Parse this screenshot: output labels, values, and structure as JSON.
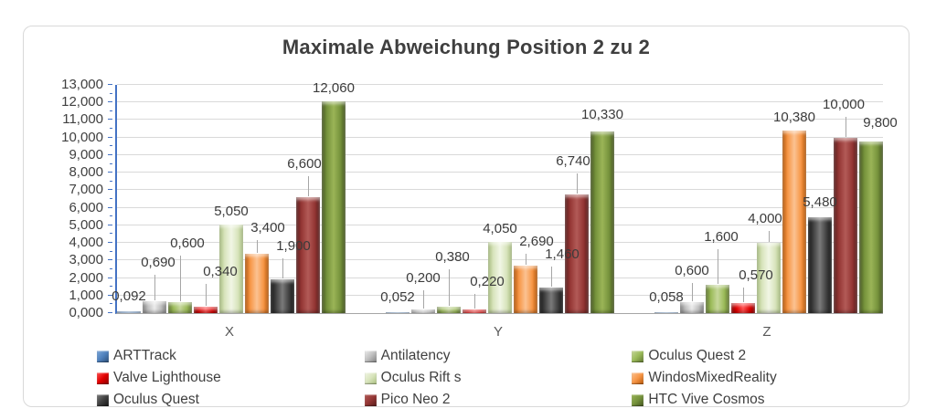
{
  "page_background": "#ffffff",
  "frame": {
    "border_color": "#d9d9d9",
    "background": "#ffffff"
  },
  "chart_data": {
    "type": "bar",
    "title": "Maximale Abweichung Position 2 zu 2",
    "categories": [
      "X",
      "Y",
      "Z"
    ],
    "series": [
      {
        "name": "ARTTrack",
        "values": [
          0.092,
          0.052,
          0.058
        ],
        "display": [
          "0,092",
          "0,052",
          "0,058"
        ],
        "fill": "#4f81bd",
        "light": "#7da7d8",
        "dark": "#2c4d75",
        "label_lift": [
          8,
          8,
          8
        ],
        "label_dx": [
          0,
          0,
          0
        ],
        "leader": [
          false,
          false,
          false
        ]
      },
      {
        "name": "Antilatency",
        "values": [
          0.69,
          0.2,
          0.6
        ],
        "display": [
          "0,690",
          "0,200",
          "0,600"
        ],
        "fill": "#bfbfbf",
        "light": "#ececec",
        "dark": "#7f7f7f",
        "label_lift": [
          34,
          26,
          26
        ],
        "label_dx": [
          4,
          0,
          0
        ],
        "leader": [
          true,
          true,
          true
        ]
      },
      {
        "name": "Oculus Quest 2",
        "values": [
          0.6,
          0.38,
          1.6
        ],
        "display": [
          "0,600",
          "0,380",
          "1,600"
        ],
        "fill": "#9bbb59",
        "light": "#c6d79b",
        "dark": "#5f7530",
        "label_lift": [
          56,
          46,
          44
        ],
        "label_dx": [
          8,
          4,
          4
        ],
        "leader": [
          true,
          true,
          true
        ]
      },
      {
        "name": "Valve Lighthouse",
        "values": [
          0.34,
          0.22,
          0.57
        ],
        "display": [
          "0,340",
          "0,220",
          "0,570"
        ],
        "fill": "#e00000",
        "light": "#ff5050",
        "dark": "#8a0000",
        "label_lift": [
          30,
          22,
          22
        ],
        "label_dx": [
          16,
          14,
          14
        ],
        "leader": [
          true,
          true,
          true
        ]
      },
      {
        "name": "Oculus Rift s",
        "values": [
          5.05,
          4.05,
          4.0
        ],
        "display": [
          "5,050",
          "4,050",
          "4,000"
        ],
        "fill": "#d8e4bc",
        "light": "#f1f6e5",
        "dark": "#a9bf7f",
        "label_lift": [
          6,
          6,
          18
        ],
        "label_dx": [
          0,
          0,
          -4
        ],
        "leader": [
          false,
          false,
          true
        ]
      },
      {
        "name": "WindosMixedReality",
        "values": [
          3.4,
          2.69,
          10.38
        ],
        "display": [
          "3,400",
          "2,690",
          "10,380"
        ],
        "fill": "#f79646",
        "light": "#fbc292",
        "dark": "#b65708",
        "label_lift": [
          20,
          18,
          6
        ],
        "label_dx": [
          12,
          12,
          0
        ],
        "leader": [
          true,
          true,
          false
        ]
      },
      {
        "name": "Oculus Quest",
        "values": [
          1.9,
          1.46,
          5.48
        ],
        "display": [
          "1,900",
          "1,460",
          "5,480"
        ],
        "fill": "#404040",
        "light": "#7a7a7a",
        "dark": "#141414",
        "label_lift": [
          28,
          28,
          8
        ],
        "label_dx": [
          12,
          12,
          0
        ],
        "leader": [
          true,
          true,
          false
        ]
      },
      {
        "name": "Pico Neo 2",
        "values": [
          6.6,
          6.74,
          10.0
        ],
        "display": [
          "6,600",
          "6,740",
          "10,000"
        ],
        "fill": "#943634",
        "light": "#b25a57",
        "dark": "#571c1b",
        "label_lift": [
          28,
          28,
          28
        ],
        "label_dx": [
          -4,
          -4,
          -2
        ],
        "leader": [
          true,
          true,
          true
        ]
      },
      {
        "name": "HTC Vive Cosmos",
        "values": [
          12.06,
          10.33,
          9.8
        ],
        "display": [
          "12,060",
          "10,330",
          "9,800"
        ],
        "fill": "#76933c",
        "light": "#9ab457",
        "dark": "#44551f",
        "label_lift": [
          6,
          10,
          12
        ],
        "label_dx": [
          0,
          0,
          10
        ],
        "leader": [
          false,
          false,
          false
        ]
      }
    ],
    "ylim": [
      0,
      13
    ],
    "ytick_step": 1,
    "ytick_labels": [
      "0,000",
      "1,000",
      "2,000",
      "3,000",
      "4,000",
      "5,000",
      "6,000",
      "7,000",
      "8,000",
      "9,000",
      "10,000",
      "11,000",
      "12,000",
      "13,000"
    ],
    "grid": true,
    "gridline_color": "#d9d9d9",
    "axis_color": "#4472c4",
    "baseline_color": "#a6a6a6",
    "text_color": "#404040",
    "legend_position": "bottom"
  }
}
